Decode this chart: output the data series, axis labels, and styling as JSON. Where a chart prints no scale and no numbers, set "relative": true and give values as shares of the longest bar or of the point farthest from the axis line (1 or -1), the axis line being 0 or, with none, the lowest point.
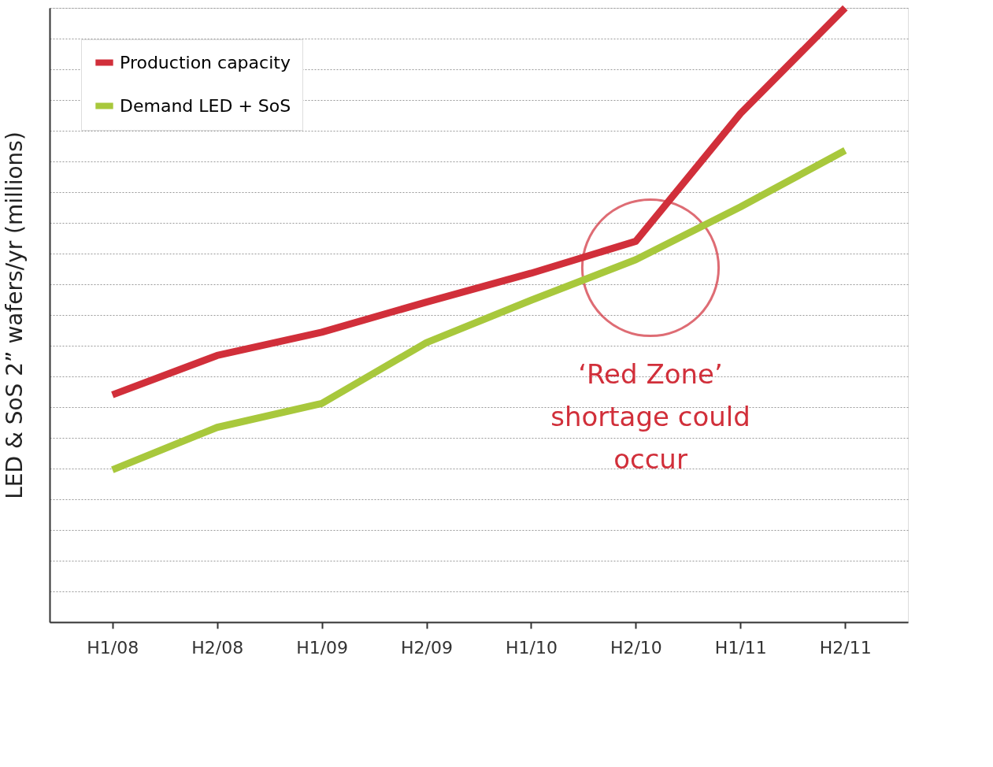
{
  "chart_data": {
    "type": "line",
    "relative": true,
    "ylabel": "LED & SoS 2” wafers/yr (millions)",
    "categories": [
      "H1/08",
      "H2/08",
      "H1/09",
      "H2/09",
      "H1/10",
      "H2/10",
      "H1/11",
      "H2/11"
    ],
    "series": [
      {
        "name": "Production capacity",
        "color": "#d12f3a",
        "values": [
          0.37,
          0.434,
          0.472,
          0.521,
          0.568,
          0.62,
          0.828,
          1.0
        ]
      },
      {
        "name": "Demand LED + SoS",
        "color": "#a8c83c",
        "values": [
          0.248,
          0.317,
          0.356,
          0.455,
          0.524,
          0.59,
          0.676,
          0.768
        ]
      }
    ],
    "annotations": [
      "‘Red Zone’ shortage could occur"
    ],
    "grid": "y",
    "legend": "top left",
    "marker": "none",
    "line_style": "solid",
    "tick_labels": "x"
  }
}
